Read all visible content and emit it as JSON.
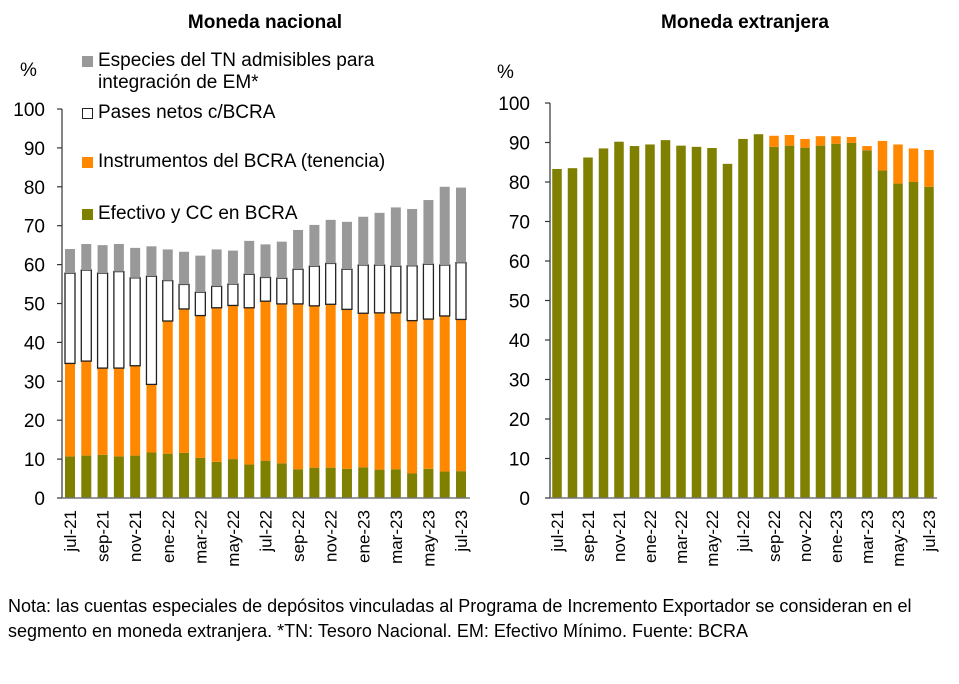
{
  "note": "Nota: las cuentas especiales de depósitos vinculadas al Programa de Incremento Exportador se consideran en el segmento en moneda extranjera. *TN: Tesoro Nacional. EM: Efectivo Mínimo. Fuente: BCRA",
  "colors": {
    "especies": "#999999",
    "pases": "#ffffff",
    "pases_border": "#222222",
    "instrumentos": "#ff8800",
    "efectivo": "#7f7f00"
  },
  "chart_data": [
    {
      "type": "bar",
      "stacked": true,
      "title": "Moneda nacional",
      "ylabel": "%",
      "xlabel": "",
      "ylim": [
        0,
        100
      ],
      "yticks": [
        0,
        10,
        20,
        30,
        40,
        50,
        60,
        70,
        80,
        90,
        100
      ],
      "grid": false,
      "legend_position": "top-left",
      "categories": [
        "jul-21",
        "ago-21",
        "sep-21",
        "oct-21",
        "nov-21",
        "dic-21",
        "ene-22",
        "feb-22",
        "mar-22",
        "abr-22",
        "may-22",
        "jun-22",
        "jul-22",
        "ago-22",
        "sep-22",
        "oct-22",
        "nov-22",
        "dic-22",
        "ene-23",
        "feb-23",
        "mar-23",
        "abr-23",
        "may-23",
        "jun-23",
        "jul-23"
      ],
      "tick_labels": [
        "jul-21",
        "sep-21",
        "nov-21",
        "ene-22",
        "mar-22",
        "may-22",
        "jul-22",
        "sep-22",
        "nov-22",
        "ene-23",
        "mar-23",
        "may-23",
        "jul-23"
      ],
      "series": [
        {
          "name": "Efectivo y CC en BCRA",
          "color_key": "efectivo",
          "values": [
            10.7,
            10.9,
            11.1,
            10.7,
            10.9,
            11.7,
            11.4,
            11.6,
            10.3,
            9.3,
            10.0,
            8.6,
            9.6,
            8.9,
            7.4,
            7.8,
            7.8,
            7.5,
            7.9,
            7.3,
            7.4,
            6.3,
            7.5,
            6.8,
            6.9
          ]
        },
        {
          "name": "Instrumentos del BCRA (tenencia)",
          "color_key": "instrumentos",
          "values": [
            23.9,
            24.3,
            22.3,
            22.7,
            23.1,
            17.5,
            34.1,
            37.0,
            36.6,
            39.6,
            39.5,
            40.3,
            41.0,
            41.0,
            42.5,
            41.6,
            42.0,
            41.0,
            39.6,
            40.3,
            40.2,
            39.3,
            38.5,
            40.0,
            39.0
          ]
        },
        {
          "name": "Pases netos c/BCRA",
          "color_key": "pases",
          "values": [
            23.2,
            23.4,
            24.4,
            24.8,
            22.6,
            27.8,
            10.4,
            6.3,
            6.0,
            5.5,
            5.5,
            8.6,
            6.1,
            6.6,
            8.9,
            10.2,
            10.5,
            10.3,
            12.4,
            12.3,
            12.0,
            14.1,
            14.1,
            13.1,
            14.6
          ]
        },
        {
          "name": "Especies del TN admisibles para integración de EM*",
          "color_key": "especies",
          "values": [
            6.2,
            6.7,
            7.2,
            7.1,
            7.7,
            7.7,
            8.0,
            8.4,
            9.4,
            9.5,
            8.6,
            8.6,
            8.5,
            9.4,
            10.1,
            10.6,
            11.2,
            12.2,
            12.4,
            13.4,
            15.1,
            14.6,
            16.5,
            20.1,
            19.3
          ]
        }
      ]
    },
    {
      "type": "bar",
      "stacked": true,
      "title": "Moneda extranjera",
      "ylabel": "%",
      "xlabel": "",
      "ylim": [
        0,
        100
      ],
      "yticks": [
        0,
        10,
        20,
        30,
        40,
        50,
        60,
        70,
        80,
        90,
        100
      ],
      "grid": false,
      "categories": [
        "jul-21",
        "ago-21",
        "sep-21",
        "oct-21",
        "nov-21",
        "dic-21",
        "ene-22",
        "feb-22",
        "mar-22",
        "abr-22",
        "may-22",
        "jun-22",
        "jul-22",
        "ago-22",
        "sep-22",
        "oct-22",
        "nov-22",
        "dic-22",
        "ene-23",
        "feb-23",
        "mar-23",
        "abr-23",
        "may-23",
        "jun-23",
        "jul-23"
      ],
      "tick_labels": [
        "jul-21",
        "sep-21",
        "nov-21",
        "ene-22",
        "mar-22",
        "may-22",
        "jul-22",
        "sep-22",
        "nov-22",
        "ene-23",
        "mar-23",
        "may-23",
        "jul-23"
      ],
      "series": [
        {
          "name": "Efectivo y CC en BCRA",
          "color_key": "efectivo",
          "values": [
            83.3,
            83.5,
            86.2,
            88.5,
            90.2,
            89.1,
            89.5,
            90.6,
            89.2,
            88.9,
            88.6,
            84.6,
            90.9,
            92.1,
            88.9,
            89.2,
            88.7,
            89.2,
            89.7,
            89.9,
            88.0,
            82.9,
            79.6,
            80.0,
            78.8
          ]
        },
        {
          "name": "Instrumentos del BCRA (tenencia)",
          "color_key": "instrumentos",
          "values": [
            0,
            0,
            0,
            0,
            0,
            0,
            0,
            0,
            0,
            0,
            0,
            0,
            0,
            0,
            2.8,
            2.7,
            2.2,
            2.4,
            1.9,
            1.5,
            1.1,
            7.5,
            9.9,
            8.5,
            9.3
          ]
        }
      ]
    }
  ]
}
